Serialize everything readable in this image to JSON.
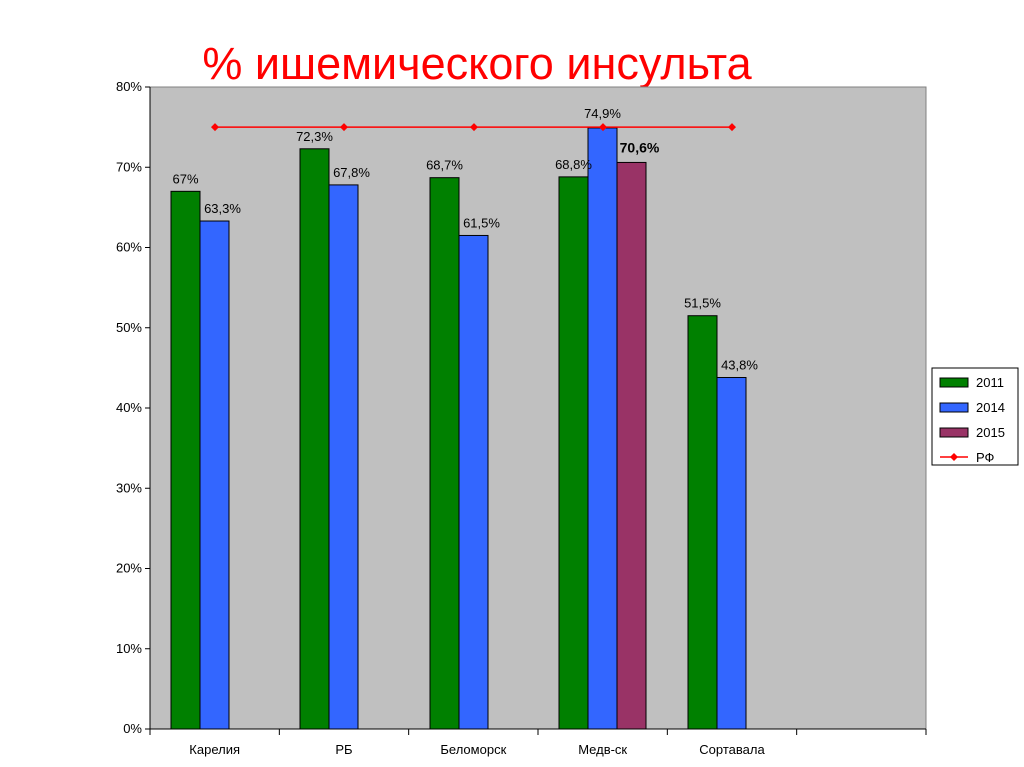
{
  "chart_data": {
    "type": "bar",
    "title": "% ишемического инсульта",
    "categories": [
      "Карелия",
      "РБ",
      "Беломорск",
      "Медв-ск",
      "Сортавала",
      ""
    ],
    "y_ticks": [
      "0%",
      "10%",
      "20%",
      "30%",
      "40%",
      "50%",
      "60%",
      "70%",
      "80%"
    ],
    "ylim": [
      0,
      80
    ],
    "grid": false,
    "plot_background": "#c0c0c0",
    "legend_position": "right",
    "series": [
      {
        "name": "2011",
        "color": "#008000",
        "values": [
          67,
          72.3,
          68.7,
          68.8,
          51.5,
          null
        ],
        "labels": [
          "67%",
          "72,3%",
          "68,7%",
          "68,8%",
          "51,5%",
          ""
        ]
      },
      {
        "name": "2014",
        "color": "#3366ff",
        "values": [
          63.3,
          67.8,
          61.5,
          74.9,
          43.8,
          null
        ],
        "labels": [
          "63,3%",
          "67,8%",
          "61,5%",
          "74,9%",
          "43,8%",
          ""
        ]
      },
      {
        "name": "2015",
        "color": "#993366",
        "values": [
          null,
          null,
          null,
          70.6,
          null,
          null
        ],
        "labels": [
          "",
          "",
          "",
          "70,6%",
          "",
          ""
        ]
      }
    ],
    "line_series": {
      "name": "РФ",
      "color": "#ff0000",
      "values": [
        75,
        75,
        75,
        75,
        75
      ]
    }
  }
}
